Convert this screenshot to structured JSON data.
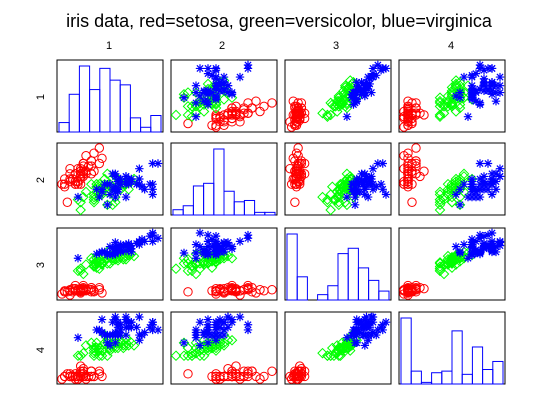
{
  "chart_data": {
    "type": "scatter",
    "subtype": "scatterplot-matrix",
    "title": "iris data, red=setosa, green=versicolor, blue=virginica",
    "variables": [
      "1",
      "2",
      "3",
      "4"
    ],
    "diagonal": "histogram",
    "axes_ticks_shown": false,
    "grid": false,
    "groups": [
      {
        "name": "setosa",
        "color": "#ff0000",
        "marker": "circle"
      },
      {
        "name": "versicolor",
        "color": "#00ff00",
        "marker": "diamond"
      },
      {
        "name": "virginica",
        "color": "#0000ff",
        "marker": "asterisk"
      }
    ],
    "ranges": [
      [
        4.3,
        7.9
      ],
      [
        2.0,
        4.4
      ],
      [
        1.0,
        6.9
      ],
      [
        0.1,
        2.5
      ]
    ],
    "histograms": [
      {
        "var": "1",
        "counts": [
          4,
          16,
          28,
          18,
          27,
          22,
          20,
          6,
          2,
          7
        ],
        "color": "#0000ff"
      },
      {
        "var": "2",
        "counts": [
          4,
          7,
          22,
          24,
          50,
          18,
          10,
          11,
          2,
          2
        ],
        "color": "#0000ff"
      },
      {
        "var": "3",
        "counts": [
          37,
          13,
          0,
          3,
          8,
          26,
          29,
          18,
          11,
          5
        ],
        "color": "#0000ff"
      },
      {
        "var": "4",
        "counts": [
          41,
          8,
          1,
          7,
          8,
          33,
          6,
          23,
          9,
          14
        ],
        "color": "#0000ff"
      }
    ],
    "series": [
      {
        "name": "setosa",
        "values": [
          [
            5.1,
            3.5,
            1.4,
            0.2
          ],
          [
            4.9,
            3.0,
            1.4,
            0.2
          ],
          [
            4.7,
            3.2,
            1.3,
            0.2
          ],
          [
            4.6,
            3.1,
            1.5,
            0.2
          ],
          [
            5.0,
            3.6,
            1.4,
            0.2
          ],
          [
            5.4,
            3.9,
            1.7,
            0.4
          ],
          [
            4.6,
            3.4,
            1.4,
            0.3
          ],
          [
            5.0,
            3.4,
            1.5,
            0.2
          ],
          [
            4.4,
            2.9,
            1.4,
            0.2
          ],
          [
            4.9,
            3.1,
            1.5,
            0.1
          ],
          [
            5.4,
            3.7,
            1.5,
            0.2
          ],
          [
            4.8,
            3.4,
            1.6,
            0.2
          ],
          [
            4.8,
            3.0,
            1.4,
            0.1
          ],
          [
            4.3,
            3.0,
            1.1,
            0.1
          ],
          [
            5.8,
            4.0,
            1.2,
            0.2
          ],
          [
            5.7,
            4.4,
            1.5,
            0.4
          ],
          [
            5.4,
            3.9,
            1.3,
            0.4
          ],
          [
            5.1,
            3.5,
            1.4,
            0.3
          ],
          [
            5.7,
            3.8,
            1.7,
            0.3
          ],
          [
            5.1,
            3.8,
            1.5,
            0.3
          ],
          [
            5.4,
            3.4,
            1.7,
            0.2
          ],
          [
            5.1,
            3.7,
            1.5,
            0.4
          ],
          [
            4.6,
            3.6,
            1.0,
            0.2
          ],
          [
            5.1,
            3.3,
            1.7,
            0.5
          ],
          [
            4.8,
            3.4,
            1.9,
            0.2
          ],
          [
            5.0,
            3.0,
            1.6,
            0.2
          ],
          [
            5.0,
            3.4,
            1.6,
            0.4
          ],
          [
            5.2,
            3.5,
            1.5,
            0.2
          ],
          [
            5.2,
            3.4,
            1.4,
            0.2
          ],
          [
            4.7,
            3.2,
            1.6,
            0.2
          ],
          [
            4.8,
            3.1,
            1.6,
            0.2
          ],
          [
            5.4,
            3.4,
            1.5,
            0.4
          ],
          [
            5.2,
            4.1,
            1.5,
            0.1
          ],
          [
            5.5,
            4.2,
            1.4,
            0.2
          ],
          [
            4.9,
            3.1,
            1.5,
            0.2
          ],
          [
            5.0,
            3.2,
            1.2,
            0.2
          ],
          [
            5.5,
            3.5,
            1.3,
            0.2
          ],
          [
            4.9,
            3.6,
            1.4,
            0.1
          ],
          [
            4.4,
            3.0,
            1.3,
            0.2
          ],
          [
            5.1,
            3.4,
            1.5,
            0.2
          ],
          [
            5.0,
            3.5,
            1.3,
            0.3
          ],
          [
            4.5,
            2.3,
            1.3,
            0.3
          ],
          [
            4.4,
            3.2,
            1.3,
            0.2
          ],
          [
            5.0,
            3.5,
            1.6,
            0.6
          ],
          [
            5.1,
            3.8,
            1.9,
            0.4
          ],
          [
            4.8,
            3.0,
            1.4,
            0.3
          ],
          [
            5.1,
            3.8,
            1.6,
            0.2
          ],
          [
            4.6,
            3.2,
            1.4,
            0.2
          ],
          [
            5.3,
            3.7,
            1.5,
            0.2
          ],
          [
            5.0,
            3.3,
            1.4,
            0.2
          ]
        ]
      },
      {
        "name": "versicolor",
        "values": [
          [
            7.0,
            3.2,
            4.7,
            1.4
          ],
          [
            6.4,
            3.2,
            4.5,
            1.5
          ],
          [
            6.9,
            3.1,
            4.9,
            1.5
          ],
          [
            5.5,
            2.3,
            4.0,
            1.3
          ],
          [
            6.5,
            2.8,
            4.6,
            1.5
          ],
          [
            5.7,
            2.8,
            4.5,
            1.3
          ],
          [
            6.3,
            3.3,
            4.7,
            1.6
          ],
          [
            4.9,
            2.4,
            3.3,
            1.0
          ],
          [
            6.6,
            2.9,
            4.6,
            1.3
          ],
          [
            5.2,
            2.7,
            3.9,
            1.4
          ],
          [
            5.0,
            2.0,
            3.5,
            1.0
          ],
          [
            5.9,
            3.0,
            4.2,
            1.5
          ],
          [
            6.0,
            2.2,
            4.0,
            1.0
          ],
          [
            6.1,
            2.9,
            4.7,
            1.4
          ],
          [
            5.6,
            2.9,
            3.6,
            1.3
          ],
          [
            6.7,
            3.1,
            4.4,
            1.4
          ],
          [
            5.6,
            3.0,
            4.5,
            1.5
          ],
          [
            5.8,
            2.7,
            4.1,
            1.0
          ],
          [
            6.2,
            2.2,
            4.5,
            1.5
          ],
          [
            5.6,
            2.5,
            3.9,
            1.1
          ],
          [
            5.9,
            3.2,
            4.8,
            1.8
          ],
          [
            6.1,
            2.8,
            4.0,
            1.3
          ],
          [
            6.3,
            2.5,
            4.9,
            1.5
          ],
          [
            6.1,
            2.8,
            4.7,
            1.2
          ],
          [
            6.4,
            2.9,
            4.3,
            1.3
          ],
          [
            6.6,
            3.0,
            4.4,
            1.4
          ],
          [
            6.8,
            2.8,
            4.8,
            1.4
          ],
          [
            6.7,
            3.0,
            5.0,
            1.7
          ],
          [
            6.0,
            2.9,
            4.5,
            1.5
          ],
          [
            5.7,
            2.6,
            3.5,
            1.0
          ],
          [
            5.5,
            2.4,
            3.8,
            1.1
          ],
          [
            5.5,
            2.4,
            3.7,
            1.0
          ],
          [
            5.8,
            2.7,
            3.9,
            1.2
          ],
          [
            6.0,
            2.7,
            5.1,
            1.6
          ],
          [
            5.4,
            3.0,
            4.5,
            1.5
          ],
          [
            6.0,
            3.4,
            4.5,
            1.6
          ],
          [
            6.7,
            3.1,
            4.7,
            1.5
          ],
          [
            6.3,
            2.3,
            4.4,
            1.3
          ],
          [
            5.6,
            3.0,
            4.1,
            1.3
          ],
          [
            5.5,
            2.5,
            4.0,
            1.3
          ],
          [
            5.5,
            2.6,
            4.4,
            1.2
          ],
          [
            6.1,
            3.0,
            4.6,
            1.4
          ],
          [
            5.8,
            2.6,
            4.0,
            1.2
          ],
          [
            5.0,
            2.3,
            3.3,
            1.0
          ],
          [
            5.6,
            2.7,
            4.2,
            1.3
          ],
          [
            5.7,
            3.0,
            4.2,
            1.2
          ],
          [
            5.7,
            2.9,
            4.2,
            1.3
          ],
          [
            6.2,
            2.9,
            4.3,
            1.3
          ],
          [
            5.1,
            2.5,
            3.0,
            1.1
          ],
          [
            5.7,
            2.8,
            4.1,
            1.3
          ]
        ]
      },
      {
        "name": "virginica",
        "values": [
          [
            6.3,
            3.3,
            6.0,
            2.5
          ],
          [
            5.8,
            2.7,
            5.1,
            1.9
          ],
          [
            7.1,
            3.0,
            5.9,
            2.1
          ],
          [
            6.3,
            2.9,
            5.6,
            1.8
          ],
          [
            6.5,
            3.0,
            5.8,
            2.2
          ],
          [
            7.6,
            3.0,
            6.6,
            2.1
          ],
          [
            4.9,
            2.5,
            4.5,
            1.7
          ],
          [
            7.3,
            2.9,
            6.3,
            1.8
          ],
          [
            6.7,
            2.5,
            5.8,
            1.8
          ],
          [
            7.2,
            3.6,
            6.1,
            2.5
          ],
          [
            6.5,
            3.2,
            5.1,
            2.0
          ],
          [
            6.4,
            2.7,
            5.3,
            1.9
          ],
          [
            6.8,
            3.0,
            5.5,
            2.1
          ],
          [
            5.7,
            2.5,
            5.0,
            2.0
          ],
          [
            5.8,
            2.8,
            5.1,
            2.4
          ],
          [
            6.4,
            3.2,
            5.3,
            2.3
          ],
          [
            6.5,
            3.0,
            5.5,
            1.8
          ],
          [
            7.7,
            3.8,
            6.7,
            2.2
          ],
          [
            7.7,
            2.6,
            6.9,
            2.3
          ],
          [
            6.0,
            2.2,
            5.0,
            1.5
          ],
          [
            6.9,
            3.2,
            5.7,
            2.3
          ],
          [
            5.6,
            2.8,
            4.9,
            2.0
          ],
          [
            7.7,
            2.8,
            6.7,
            2.0
          ],
          [
            6.3,
            2.7,
            4.9,
            1.8
          ],
          [
            6.7,
            3.3,
            5.7,
            2.1
          ],
          [
            7.2,
            3.2,
            6.0,
            1.8
          ],
          [
            6.2,
            2.8,
            4.8,
            1.8
          ],
          [
            6.1,
            3.0,
            4.9,
            1.8
          ],
          [
            6.4,
            2.8,
            5.6,
            2.1
          ],
          [
            7.2,
            3.0,
            5.8,
            1.6
          ],
          [
            7.4,
            2.8,
            6.1,
            1.9
          ],
          [
            7.9,
            3.8,
            6.4,
            2.0
          ],
          [
            6.4,
            2.8,
            5.6,
            2.2
          ],
          [
            6.3,
            2.8,
            5.1,
            1.5
          ],
          [
            6.1,
            2.6,
            5.6,
            1.4
          ],
          [
            7.7,
            3.0,
            6.1,
            2.3
          ],
          [
            6.3,
            3.4,
            5.6,
            2.4
          ],
          [
            6.4,
            3.1,
            5.5,
            1.8
          ],
          [
            6.0,
            3.0,
            4.8,
            1.8
          ],
          [
            6.9,
            3.1,
            5.4,
            2.1
          ],
          [
            6.7,
            3.1,
            5.6,
            2.4
          ],
          [
            6.9,
            3.1,
            5.1,
            2.3
          ],
          [
            5.8,
            2.7,
            5.1,
            1.9
          ],
          [
            6.8,
            3.2,
            5.9,
            2.3
          ],
          [
            6.7,
            3.3,
            5.7,
            2.5
          ],
          [
            6.7,
            3.0,
            5.2,
            2.3
          ],
          [
            6.3,
            2.5,
            5.0,
            1.9
          ],
          [
            6.5,
            3.0,
            5.2,
            2.0
          ],
          [
            6.2,
            3.4,
            5.4,
            2.3
          ],
          [
            5.9,
            3.0,
            5.1,
            1.8
          ]
        ]
      }
    ]
  }
}
